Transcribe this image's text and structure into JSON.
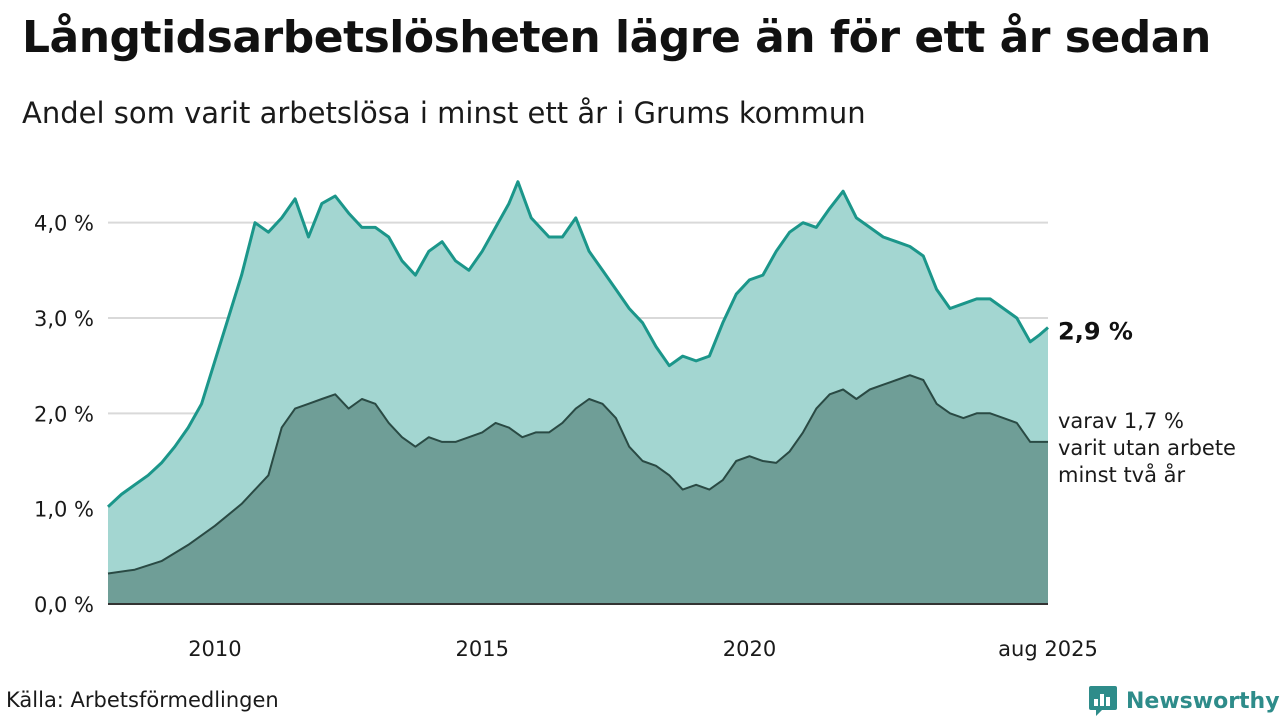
{
  "header": {
    "title": "Långtidsarbetslösheten lägre än för ett år sedan",
    "subtitle": "Andel som varit arbetslösa i minst ett år i Grums kommun"
  },
  "footer": {
    "source": "Källa: Arbetsförmedlingen",
    "brand": "Newsworthy"
  },
  "colors": {
    "series1_line": "#1b968a",
    "series1_fill": "#a3d6d1",
    "series2_line": "#2a4a44",
    "series2_fill": "#6f9e97",
    "grid": "#d9d9d9",
    "brand": "#2e8c8a"
  },
  "icons": {
    "brand_logo": "newsworthy-logo-icon"
  },
  "chart_data": {
    "type": "area",
    "title": "Långtidsarbetslösheten lägre än för ett år sedan",
    "subtitle": "Andel som varit arbetslösa i minst ett år i Grums kommun",
    "x_domain": [
      "2008-01",
      "2025-08"
    ],
    "x_ticks": [
      {
        "x": "2010-01",
        "label": "2010"
      },
      {
        "x": "2015-01",
        "label": "2015"
      },
      {
        "x": "2020-01",
        "label": "2020"
      },
      {
        "x": "2025-08",
        "label": "aug 2025"
      }
    ],
    "ylim": [
      0,
      4.5
    ],
    "y_ticks": [
      {
        "y": 0,
        "label": "0,0 %"
      },
      {
        "y": 1,
        "label": "1,0 %"
      },
      {
        "y": 2,
        "label": "2,0 %"
      },
      {
        "y": 3,
        "label": "3,0 %"
      },
      {
        "y": 4,
        "label": "4,0 %"
      }
    ],
    "grid": true,
    "series": [
      {
        "points": [
          [
            "2008-01",
            1.02
          ],
          [
            "2008-04",
            1.15
          ],
          [
            "2008-07",
            1.25
          ],
          [
            "2008-10",
            1.35
          ],
          [
            "2009-01",
            1.48
          ],
          [
            "2009-04",
            1.65
          ],
          [
            "2009-07",
            1.85
          ],
          [
            "2009-10",
            2.1
          ],
          [
            "2010-01",
            2.55
          ],
          [
            "2010-04",
            3.0
          ],
          [
            "2010-07",
            3.45
          ],
          [
            "2010-10",
            4.0
          ],
          [
            "2011-01",
            3.9
          ],
          [
            "2011-04",
            4.05
          ],
          [
            "2011-07",
            4.25
          ],
          [
            "2011-10",
            3.85
          ],
          [
            "2012-01",
            4.2
          ],
          [
            "2012-04",
            4.28
          ],
          [
            "2012-07",
            4.1
          ],
          [
            "2012-10",
            3.95
          ],
          [
            "2013-01",
            3.95
          ],
          [
            "2013-04",
            3.85
          ],
          [
            "2013-07",
            3.6
          ],
          [
            "2013-10",
            3.45
          ],
          [
            "2014-01",
            3.7
          ],
          [
            "2014-04",
            3.8
          ],
          [
            "2014-07",
            3.6
          ],
          [
            "2014-10",
            3.5
          ],
          [
            "2015-01",
            3.7
          ],
          [
            "2015-04",
            3.95
          ],
          [
            "2015-07",
            4.2
          ],
          [
            "2015-09",
            4.43
          ],
          [
            "2015-12",
            4.05
          ],
          [
            "2016-04",
            3.85
          ],
          [
            "2016-07",
            3.85
          ],
          [
            "2016-10",
            4.05
          ],
          [
            "2017-01",
            3.7
          ],
          [
            "2017-04",
            3.5
          ],
          [
            "2017-07",
            3.3
          ],
          [
            "2017-10",
            3.1
          ],
          [
            "2018-01",
            2.95
          ],
          [
            "2018-04",
            2.7
          ],
          [
            "2018-07",
            2.5
          ],
          [
            "2018-10",
            2.6
          ],
          [
            "2019-01",
            2.55
          ],
          [
            "2019-04",
            2.6
          ],
          [
            "2019-07",
            2.95
          ],
          [
            "2019-10",
            3.25
          ],
          [
            "2020-01",
            3.4
          ],
          [
            "2020-04",
            3.45
          ],
          [
            "2020-07",
            3.7
          ],
          [
            "2020-10",
            3.9
          ],
          [
            "2021-01",
            4.0
          ],
          [
            "2021-04",
            3.95
          ],
          [
            "2021-07",
            4.15
          ],
          [
            "2021-10",
            4.33
          ],
          [
            "2022-01",
            4.05
          ],
          [
            "2022-04",
            3.95
          ],
          [
            "2022-07",
            3.85
          ],
          [
            "2022-10",
            3.8
          ],
          [
            "2023-01",
            3.75
          ],
          [
            "2023-04",
            3.65
          ],
          [
            "2023-07",
            3.3
          ],
          [
            "2023-10",
            3.1
          ],
          [
            "2024-01",
            3.15
          ],
          [
            "2024-04",
            3.2
          ],
          [
            "2024-07",
            3.2
          ],
          [
            "2024-10",
            3.1
          ],
          [
            "2025-01",
            3.0
          ],
          [
            "2025-04",
            2.75
          ],
          [
            "2025-06",
            2.82
          ],
          [
            "2025-08",
            2.9
          ]
        ]
      },
      {
        "points": [
          [
            "2008-01",
            0.32
          ],
          [
            "2008-07",
            0.36
          ],
          [
            "2009-01",
            0.45
          ],
          [
            "2009-07",
            0.62
          ],
          [
            "2010-01",
            0.82
          ],
          [
            "2010-07",
            1.05
          ],
          [
            "2011-01",
            1.35
          ],
          [
            "2011-04",
            1.85
          ],
          [
            "2011-07",
            2.05
          ],
          [
            "2011-10",
            2.1
          ],
          [
            "2012-01",
            2.15
          ],
          [
            "2012-04",
            2.2
          ],
          [
            "2012-07",
            2.05
          ],
          [
            "2012-10",
            2.15
          ],
          [
            "2013-01",
            2.1
          ],
          [
            "2013-04",
            1.9
          ],
          [
            "2013-07",
            1.75
          ],
          [
            "2013-10",
            1.65
          ],
          [
            "2014-01",
            1.75
          ],
          [
            "2014-04",
            1.7
          ],
          [
            "2014-07",
            1.7
          ],
          [
            "2014-10",
            1.75
          ],
          [
            "2015-01",
            1.8
          ],
          [
            "2015-04",
            1.9
          ],
          [
            "2015-07",
            1.85
          ],
          [
            "2015-10",
            1.75
          ],
          [
            "2016-01",
            1.8
          ],
          [
            "2016-04",
            1.8
          ],
          [
            "2016-07",
            1.9
          ],
          [
            "2016-10",
            2.05
          ],
          [
            "2017-01",
            2.15
          ],
          [
            "2017-04",
            2.1
          ],
          [
            "2017-07",
            1.95
          ],
          [
            "2017-10",
            1.65
          ],
          [
            "2018-01",
            1.5
          ],
          [
            "2018-04",
            1.45
          ],
          [
            "2018-07",
            1.35
          ],
          [
            "2018-10",
            1.2
          ],
          [
            "2019-01",
            1.25
          ],
          [
            "2019-04",
            1.2
          ],
          [
            "2019-07",
            1.3
          ],
          [
            "2019-10",
            1.5
          ],
          [
            "2020-01",
            1.55
          ],
          [
            "2020-04",
            1.5
          ],
          [
            "2020-07",
            1.48
          ],
          [
            "2020-10",
            1.6
          ],
          [
            "2021-01",
            1.8
          ],
          [
            "2021-04",
            2.05
          ],
          [
            "2021-07",
            2.2
          ],
          [
            "2021-10",
            2.25
          ],
          [
            "2022-01",
            2.15
          ],
          [
            "2022-04",
            2.25
          ],
          [
            "2022-07",
            2.3
          ],
          [
            "2022-10",
            2.35
          ],
          [
            "2023-01",
            2.4
          ],
          [
            "2023-04",
            2.35
          ],
          [
            "2023-07",
            2.1
          ],
          [
            "2023-10",
            2.0
          ],
          [
            "2024-01",
            1.95
          ],
          [
            "2024-04",
            2.0
          ],
          [
            "2024-07",
            2.0
          ],
          [
            "2024-10",
            1.95
          ],
          [
            "2025-01",
            1.9
          ],
          [
            "2025-04",
            1.7
          ],
          [
            "2025-08",
            1.7
          ]
        ]
      }
    ],
    "annotations": [
      {
        "text": "2,9 %",
        "bold": true
      },
      {
        "lines": [
          "varav 1,7 %",
          "varit utan arbete",
          "minst två år"
        ]
      }
    ]
  }
}
